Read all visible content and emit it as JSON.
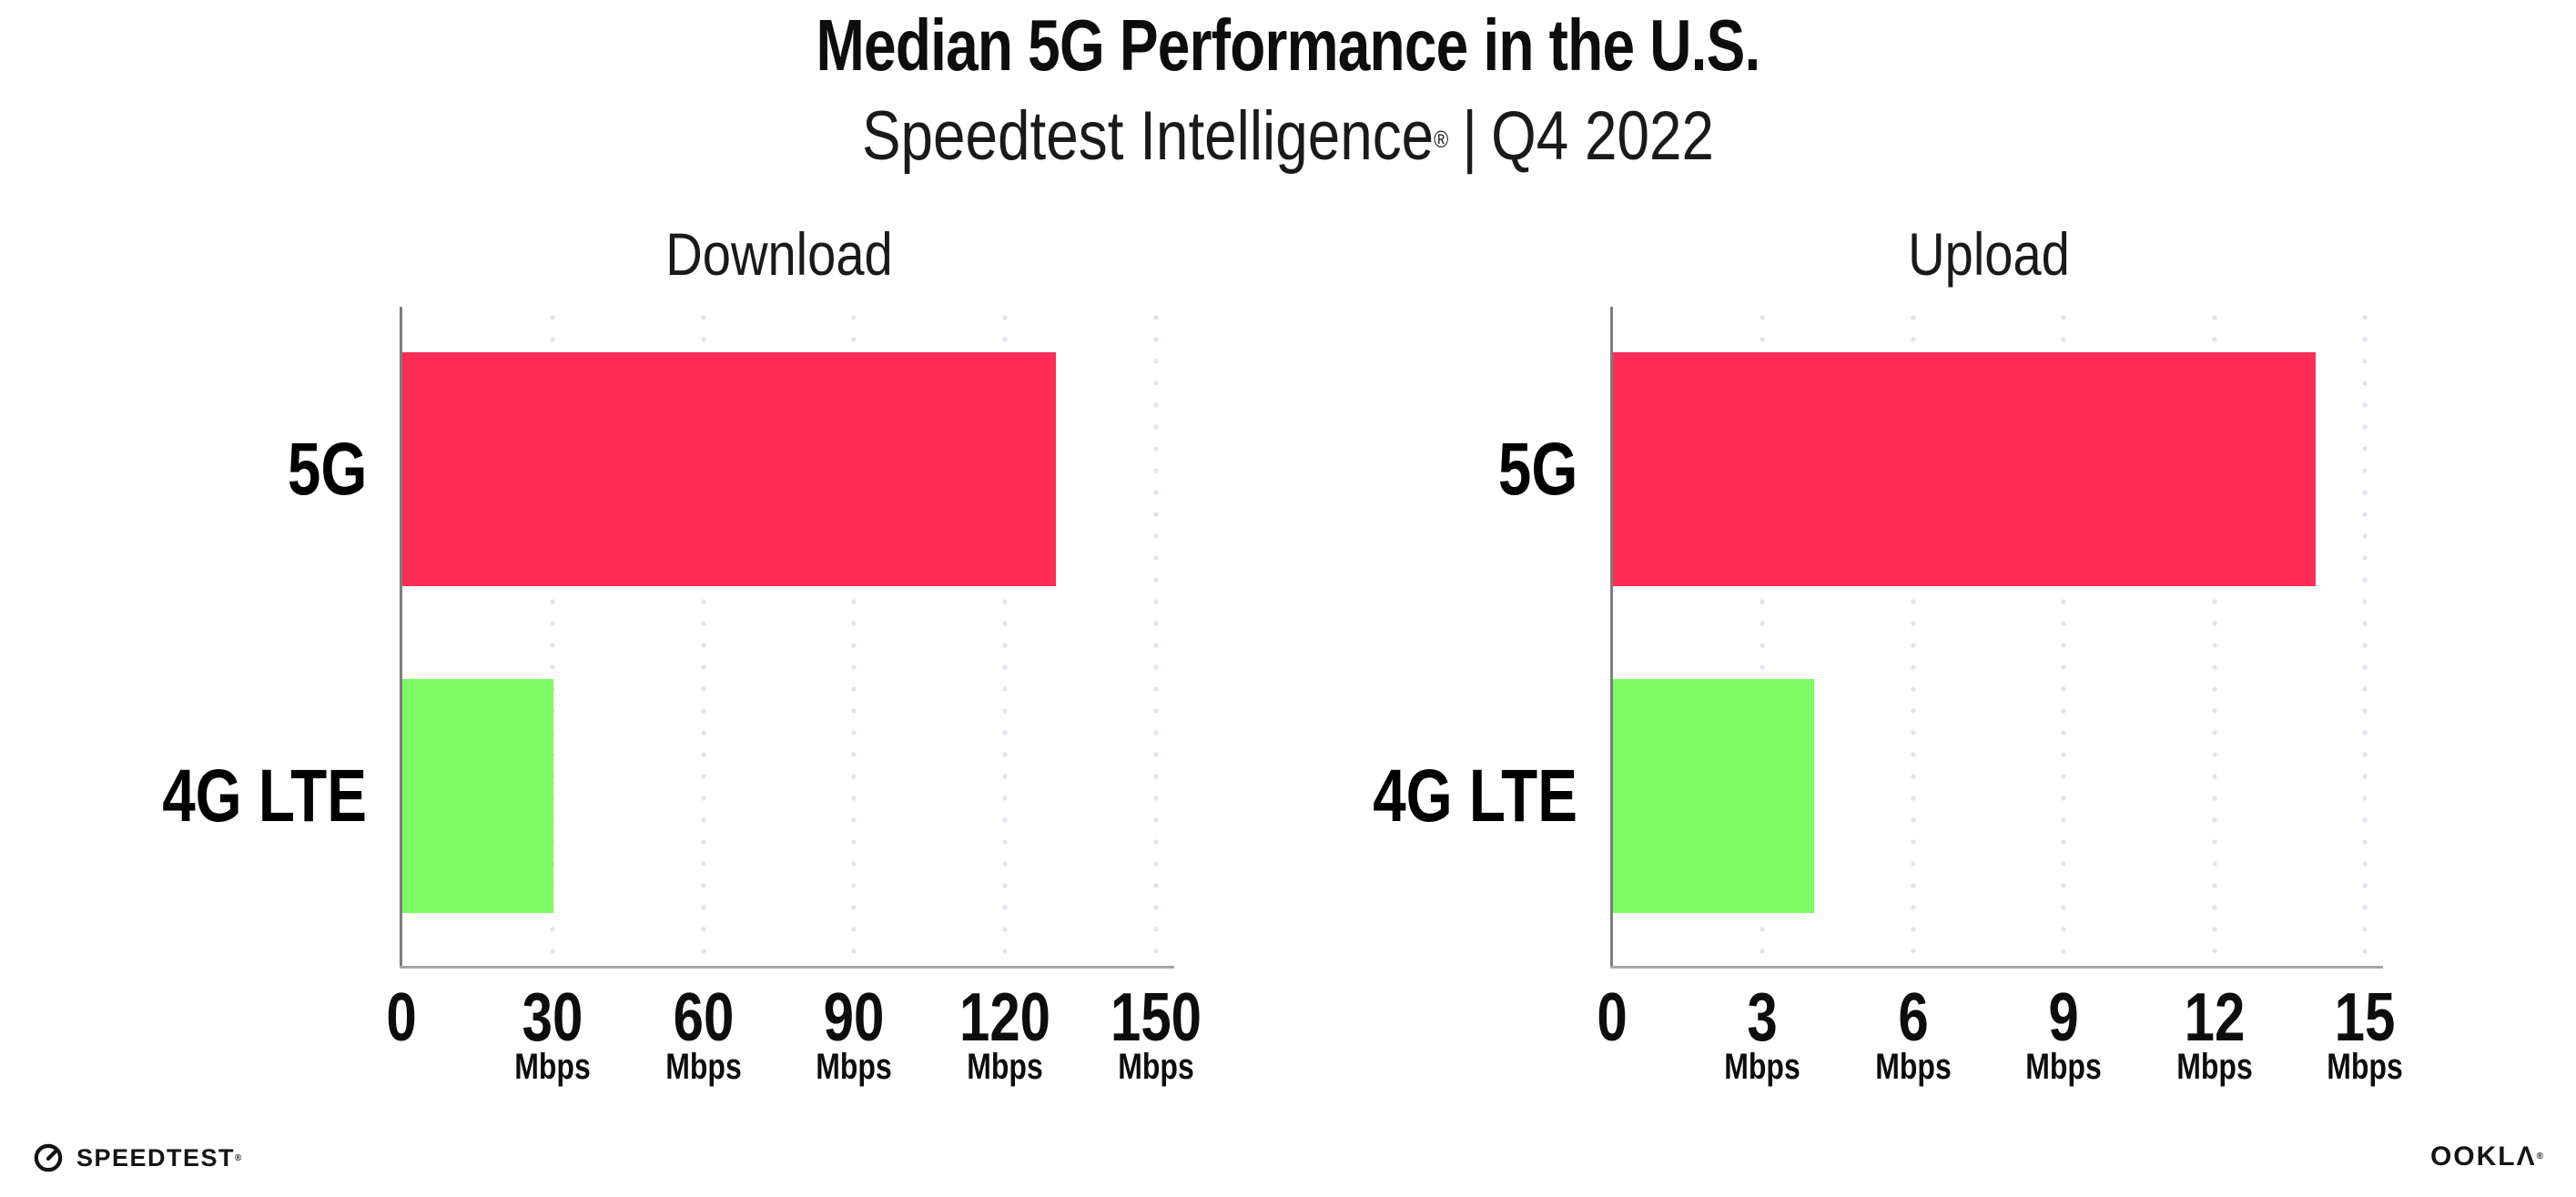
{
  "header": {
    "title": "Median 5G Performance in the U.S.",
    "subtitle": {
      "brand": "Speedtest Intelligence",
      "registered": "®",
      "separator": "|",
      "period": "Q4 2022"
    }
  },
  "chart_data": [
    {
      "type": "bar",
      "orientation": "horizontal",
      "title": "Download",
      "categories": [
        "5G",
        "4G LTE"
      ],
      "values": [
        130,
        30
      ],
      "unit": "Mbps",
      "xlim": [
        0,
        150
      ],
      "xticks": [
        0,
        30,
        60,
        90,
        120,
        150
      ],
      "bar_colors": [
        "#FE2D55",
        "#7EFA65"
      ],
      "grid": "vertical-dotted",
      "legend_position": "none"
    },
    {
      "type": "bar",
      "orientation": "horizontal",
      "title": "Upload",
      "categories": [
        "5G",
        "4G LTE"
      ],
      "values": [
        14,
        4
      ],
      "unit": "Mbps",
      "xlim": [
        0,
        15
      ],
      "xticks": [
        0,
        3,
        6,
        9,
        12,
        15
      ],
      "bar_colors": [
        "#FE2D55",
        "#7EFA65"
      ],
      "grid": "vertical-dotted",
      "legend_position": "none"
    }
  ],
  "footer": {
    "speedtest": {
      "label": "SPEEDTEST",
      "registered": "®"
    },
    "ookla": {
      "label": "OOKLΛ",
      "registered": "®"
    }
  },
  "colors": {
    "bar_5g": "#FE2D55",
    "bar_4g_lte": "#7EFA65",
    "gridline_dots": "#E3E3F0",
    "axis_y": "#7D7D7D",
    "axis_x": "#A6A6A6",
    "text": "#111111",
    "background": "#FFFFFF"
  }
}
